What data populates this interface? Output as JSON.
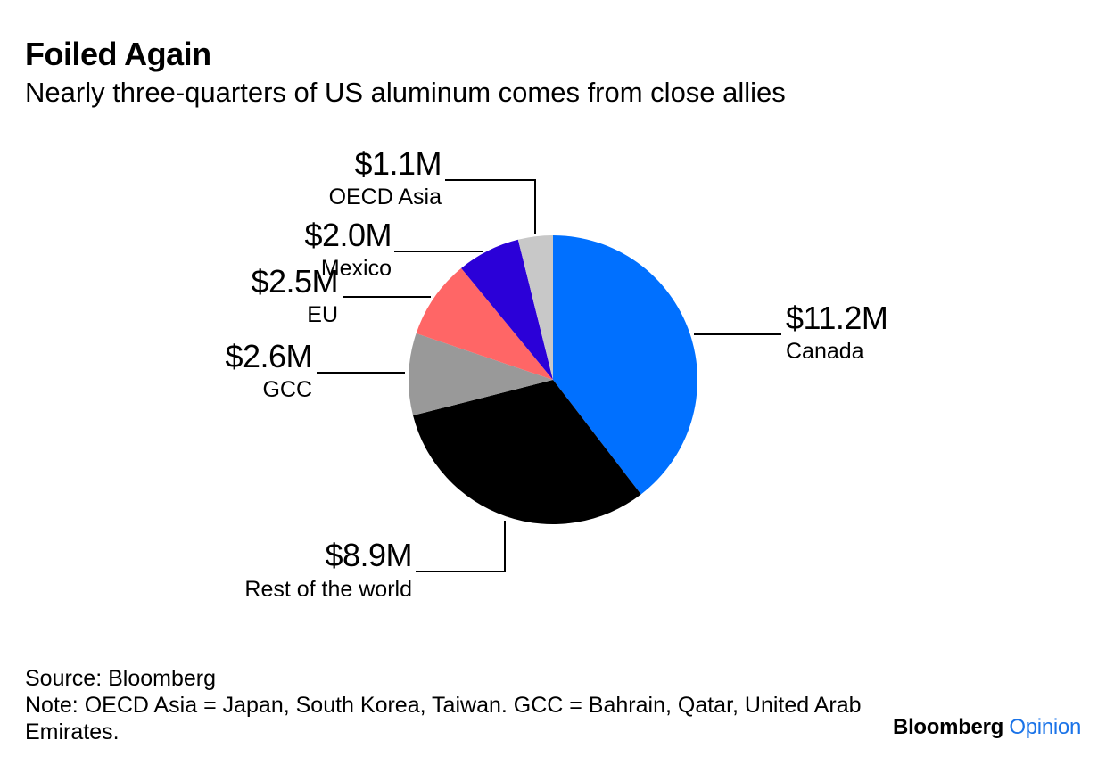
{
  "header": {
    "title": "Foiled Again",
    "subtitle": "Nearly three-quarters of US aluminum comes from close allies"
  },
  "chart_data": {
    "type": "pie",
    "title": "Foiled Again",
    "subtitle": "Nearly three-quarters of US aluminum comes from close allies",
    "slices": [
      {
        "name": "Canada",
        "value": 11.2,
        "label": "$11.2M",
        "color": "#0070ff"
      },
      {
        "name": "Rest of the world",
        "value": 8.9,
        "label": "$8.9M",
        "color": "#000000"
      },
      {
        "name": "GCC",
        "value": 2.6,
        "label": "$2.6M",
        "color": "#999999"
      },
      {
        "name": "EU",
        "value": 2.5,
        "label": "$2.5M",
        "color": "#ff6666"
      },
      {
        "name": "Mexico",
        "value": 2.0,
        "label": "$2.0M",
        "color": "#2b00d8"
      },
      {
        "name": "OECD Asia",
        "value": 1.1,
        "label": "$1.1M",
        "color": "#c8c8c8"
      }
    ],
    "start": "12 o'clock",
    "direction": "clockwise"
  },
  "footer": {
    "source": "Source: Bloomberg",
    "note": "Note: OECD Asia = Japan, South Korea, Taiwan. GCC = Bahrain, Qatar, United Arab Emirates."
  },
  "brand": {
    "name": "Bloomberg",
    "suffix": "Opinion",
    "accent_color": "#1a73e8"
  }
}
